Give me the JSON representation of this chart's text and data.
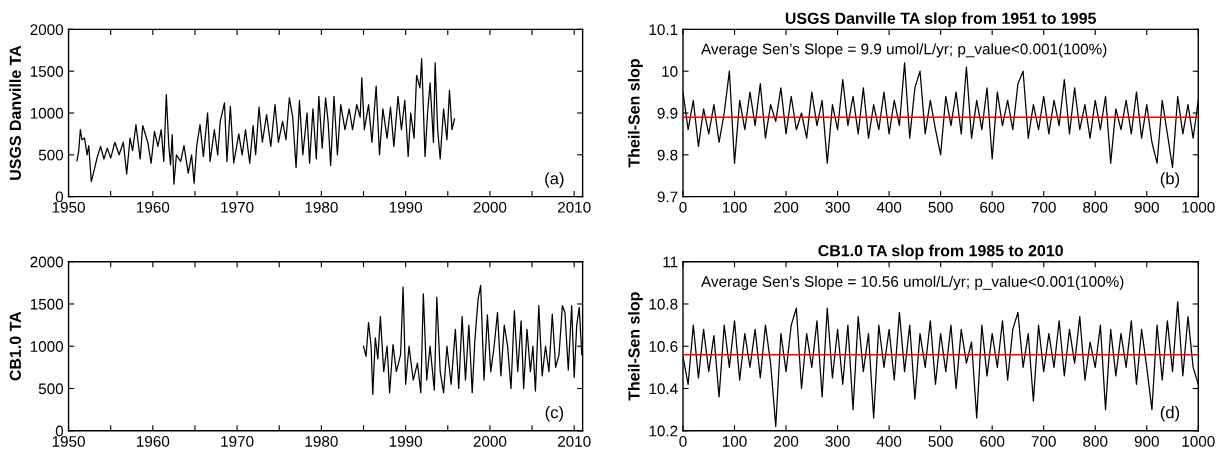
{
  "chart_data": [
    {
      "type": "line",
      "ylabel": "USGS Danville TA",
      "annotations": [
        "(a)"
      ],
      "xlim": [
        1950,
        2011
      ],
      "xticks": [
        1950,
        {
          "value": 1955,
          "label": null
        },
        1960,
        {
          "value": 1965,
          "label": null
        },
        1970,
        {
          "value": 1975,
          "label": null
        },
        1980,
        {
          "value": 1985,
          "label": null
        },
        1990,
        {
          "value": 1995,
          "label": null
        },
        2000,
        {
          "value": 2005,
          "label": null
        },
        2010
      ],
      "ylim": [
        0,
        2000
      ],
      "yticks": [
        0,
        500,
        1000,
        1500,
        2000
      ],
      "series": [
        {
          "color": "#000000",
          "x": [
            1951.0,
            1951.2,
            1951.4,
            1951.6,
            1951.9,
            1952.2,
            1952.4,
            1952.7,
            1953.0,
            1953.4,
            1953.8,
            1954.2,
            1954.6,
            1955.0,
            1955.5,
            1956.0,
            1956.5,
            1956.9,
            1957.3,
            1957.6,
            1958.0,
            1958.5,
            1958.8,
            1959.4,
            1959.8,
            1960.2,
            1960.6,
            1961.0,
            1961.3,
            1961.6,
            1961.9,
            1962.1,
            1962.3,
            1962.5,
            1962.8,
            1963.3,
            1963.7,
            1964.2,
            1964.6,
            1964.9,
            1965.2,
            1965.6,
            1966.0,
            1966.5,
            1966.8,
            1967.3,
            1967.7,
            1968.0,
            1968.5,
            1968.8,
            1969.2,
            1969.6,
            1970.2,
            1970.6,
            1971.0,
            1971.5,
            1971.9,
            1972.2,
            1972.6,
            1973.0,
            1973.5,
            1974.0,
            1974.5,
            1974.9,
            1975.4,
            1975.8,
            1976.2,
            1976.6,
            1977.0,
            1977.4,
            1977.8,
            1978.3,
            1978.6,
            1979.0,
            1979.4,
            1979.7,
            1980.1,
            1980.5,
            1980.8,
            1981.1,
            1981.5,
            1981.9,
            1982.3,
            1982.8,
            1983.3,
            1983.7,
            1984.2,
            1984.6,
            1984.8,
            1985.1,
            1985.6,
            1986.0,
            1986.5,
            1986.9,
            1987.3,
            1987.8,
            1988.2,
            1988.6,
            1989.1,
            1989.5,
            1989.9,
            1990.3,
            1990.6,
            1991.0,
            1991.3,
            1991.7,
            1991.9,
            1992.3,
            1992.6,
            1992.9,
            1993.3,
            1993.5,
            1993.8,
            1994.1,
            1994.5,
            1994.9,
            1995.2,
            1995.5,
            1995.8
          ],
          "values": [
            430,
            540,
            800,
            680,
            700,
            500,
            610,
            180,
            300,
            470,
            600,
            450,
            580,
            460,
            650,
            500,
            650,
            270,
            700,
            550,
            860,
            450,
            850,
            650,
            400,
            780,
            600,
            800,
            420,
            1220,
            600,
            380,
            740,
            150,
            500,
            420,
            610,
            280,
            500,
            160,
            600,
            860,
            480,
            1000,
            420,
            800,
            500,
            900,
            1120,
            420,
            1080,
            400,
            750,
            500,
            800,
            400,
            850,
            500,
            1070,
            650,
            980,
            600,
            1100,
            650,
            900,
            680,
            1180,
            950,
            350,
            1150,
            500,
            1000,
            400,
            1050,
            450,
            1200,
            580,
            1180,
            900,
            370,
            1200,
            500,
            1100,
            800,
            1050,
            800,
            1100,
            950,
            1420,
            800,
            1100,
            650,
            1320,
            500,
            1050,
            700,
            1070,
            600,
            1200,
            800,
            1150,
            480,
            1000,
            700,
            1450,
            1300,
            1650,
            480,
            1000,
            1360,
            650,
            1600,
            800,
            450,
            1050,
            680,
            1270,
            800,
            930
          ]
        }
      ]
    },
    {
      "type": "line",
      "title": "USGS Danville TA slop from 1951 to 1995",
      "ylabel": "Theil-Sen slop",
      "annotations": [
        "Average Sen’s Slope = 9.9 umol/L/yr; p_value<0.001(100%)",
        "(b)"
      ],
      "xlim": [
        0,
        1000
      ],
      "xticks": [
        0,
        100,
        200,
        300,
        400,
        500,
        600,
        700,
        800,
        900,
        1000
      ],
      "ylim": [
        9.7,
        10.1
      ],
      "yticks": [
        9.7,
        9.8,
        9.9,
        10,
        10.1
      ],
      "ref_lines": [
        {
          "axis": "y",
          "value": 9.89,
          "color": "#ff0000"
        }
      ],
      "series": [
        {
          "color": "#000000",
          "x": [
            0,
            10,
            20,
            30,
            40,
            50,
            60,
            70,
            80,
            90,
            100,
            110,
            120,
            130,
            140,
            150,
            160,
            170,
            180,
            190,
            200,
            210,
            220,
            230,
            240,
            250,
            260,
            270,
            280,
            290,
            300,
            310,
            320,
            330,
            340,
            350,
            360,
            370,
            380,
            390,
            400,
            410,
            420,
            430,
            440,
            450,
            460,
            470,
            480,
            490,
            500,
            510,
            520,
            530,
            540,
            550,
            560,
            570,
            580,
            590,
            600,
            610,
            620,
            630,
            640,
            650,
            660,
            670,
            680,
            690,
            700,
            710,
            720,
            730,
            740,
            750,
            760,
            770,
            780,
            790,
            800,
            810,
            820,
            830,
            840,
            850,
            860,
            870,
            880,
            890,
            900,
            910,
            920,
            930,
            940,
            950,
            960,
            970,
            980,
            990,
            1000
          ],
          "values": [
            9.95,
            9.86,
            9.93,
            9.82,
            9.91,
            9.85,
            9.92,
            9.83,
            9.9,
            10.0,
            9.78,
            9.93,
            9.86,
            9.95,
            9.87,
            9.97,
            9.84,
            9.92,
            9.88,
            9.96,
            9.85,
            9.94,
            9.86,
            9.9,
            9.84,
            9.95,
            9.87,
            9.93,
            9.78,
            9.92,
            9.86,
            9.98,
            9.87,
            9.94,
            9.85,
            9.96,
            9.84,
            9.92,
            9.86,
            9.95,
            9.85,
            9.93,
            9.87,
            10.02,
            9.84,
            9.96,
            10.0,
            9.85,
            9.93,
            9.86,
            9.8,
            9.94,
            9.87,
            9.95,
            9.85,
            10.01,
            9.84,
            9.93,
            9.86,
            9.96,
            9.79,
            9.95,
            9.87,
            9.93,
            9.86,
            9.97,
            10.0,
            9.84,
            9.92,
            9.86,
            9.94,
            9.85,
            9.93,
            9.87,
            9.98,
            9.85,
            9.96,
            9.86,
            9.92,
            9.84,
            9.93,
            9.86,
            9.94,
            9.78,
            9.91,
            9.86,
            9.93,
            9.85,
            9.95,
            9.84,
            9.92,
            9.83,
            9.78,
            9.93,
            9.85,
            9.77,
            9.94,
            9.85,
            9.92,
            9.84,
            9.93
          ]
        }
      ]
    },
    {
      "type": "line",
      "ylabel": "CB1.0 TA",
      "annotations": [
        "(c)"
      ],
      "xlim": [
        1950,
        2011
      ],
      "xticks": [
        1950,
        {
          "value": 1955,
          "label": null
        },
        1960,
        {
          "value": 1965,
          "label": null
        },
        1970,
        {
          "value": 1975,
          "label": null
        },
        1980,
        {
          "value": 1985,
          "label": null
        },
        1990,
        {
          "value": 1995,
          "label": null
        },
        2000,
        {
          "value": 2005,
          "label": null
        },
        2010
      ],
      "ylim": [
        0,
        2000
      ],
      "yticks": [
        0,
        500,
        1000,
        1500,
        2000
      ],
      "series": [
        {
          "color": "#000000",
          "x": [
            1985.0,
            1985.3,
            1985.6,
            1985.9,
            1986.1,
            1986.4,
            1986.7,
            1987.0,
            1987.4,
            1987.8,
            1988.1,
            1988.5,
            1988.9,
            1989.4,
            1989.7,
            1990.0,
            1990.4,
            1990.9,
            1991.4,
            1991.8,
            1992.1,
            1992.5,
            1992.9,
            1993.4,
            1993.7,
            1994.1,
            1994.5,
            1994.9,
            1995.4,
            1995.9,
            1996.3,
            1996.7,
            1997.1,
            1997.5,
            1997.9,
            1998.2,
            1998.6,
            1998.9,
            1999.3,
            1999.7,
            2000.1,
            2000.5,
            2000.9,
            2001.3,
            2001.7,
            2002.1,
            2002.5,
            2002.9,
            2003.3,
            2003.7,
            2004.0,
            2004.4,
            2004.8,
            2005.1,
            2005.4,
            2005.8,
            2006.2,
            2006.6,
            2007.0,
            2007.4,
            2007.8,
            2008.2,
            2008.6,
            2008.9,
            2009.3,
            2009.7,
            2010.0,
            2010.3,
            2010.6,
            2010.9
          ],
          "values": [
            1000,
            880,
            1280,
            1000,
            430,
            1100,
            850,
            1350,
            700,
            1000,
            450,
            1020,
            700,
            900,
            1700,
            550,
            1000,
            600,
            800,
            450,
            1620,
            600,
            1000,
            480,
            1580,
            700,
            450,
            1000,
            550,
            1200,
            500,
            1350,
            600,
            1250,
            450,
            1050,
            1560,
            1720,
            600,
            1370,
            700,
            1000,
            1400,
            650,
            1250,
            1000,
            500,
            1420,
            700,
            1300,
            500,
            1200,
            700,
            1000,
            470,
            1480,
            650,
            1000,
            700,
            1380,
            750,
            900,
            1480,
            1400,
            720,
            1480,
            630,
            1250,
            1460,
            900
          ]
        }
      ]
    },
    {
      "type": "line",
      "title": "CB1.0 TA slop from 1985 to 2010",
      "ylabel": "Theil-Sen slop",
      "annotations": [
        "Average Sen’s Slope = 10.56 umol/L/yr; p_value<0.001(100%)",
        "(d)"
      ],
      "xlim": [
        0,
        1000
      ],
      "xticks": [
        0,
        100,
        200,
        300,
        400,
        500,
        600,
        700,
        800,
        900,
        1000
      ],
      "ylim": [
        10.2,
        11
      ],
      "yticks": [
        10.2,
        10.4,
        10.6,
        10.8,
        11
      ],
      "ref_lines": [
        {
          "axis": "y",
          "value": 10.56,
          "color": "#ff0000"
        }
      ],
      "series": [
        {
          "color": "#000000",
          "x": [
            0,
            10,
            20,
            30,
            40,
            50,
            60,
            70,
            80,
            90,
            100,
            110,
            120,
            130,
            140,
            150,
            160,
            170,
            180,
            190,
            200,
            210,
            220,
            230,
            240,
            250,
            260,
            270,
            280,
            290,
            300,
            310,
            320,
            330,
            340,
            350,
            360,
            370,
            380,
            390,
            400,
            410,
            420,
            430,
            440,
            450,
            460,
            470,
            480,
            490,
            500,
            510,
            520,
            530,
            540,
            550,
            560,
            570,
            580,
            590,
            600,
            610,
            620,
            630,
            640,
            650,
            660,
            670,
            680,
            690,
            700,
            710,
            720,
            730,
            740,
            750,
            760,
            770,
            780,
            790,
            800,
            810,
            820,
            830,
            840,
            850,
            860,
            870,
            880,
            890,
            900,
            910,
            920,
            930,
            940,
            950,
            960,
            970,
            980,
            990,
            1000
          ],
          "values": [
            10.55,
            10.42,
            10.7,
            10.45,
            10.68,
            10.48,
            10.65,
            10.36,
            10.7,
            10.5,
            10.72,
            10.44,
            10.66,
            10.5,
            10.68,
            10.45,
            10.7,
            10.52,
            10.22,
            10.66,
            10.48,
            10.7,
            10.78,
            10.4,
            10.66,
            10.5,
            10.72,
            10.36,
            10.78,
            10.45,
            10.68,
            10.42,
            10.7,
            10.3,
            10.74,
            10.48,
            10.66,
            10.26,
            10.7,
            10.5,
            10.68,
            10.44,
            10.76,
            10.48,
            10.7,
            10.35,
            10.66,
            10.5,
            10.72,
            10.42,
            10.66,
            10.48,
            10.7,
            10.4,
            10.68,
            10.52,
            10.62,
            10.26,
            10.7,
            10.46,
            10.66,
            10.5,
            10.72,
            10.44,
            10.68,
            10.76,
            10.5,
            10.66,
            10.34,
            10.7,
            10.48,
            10.66,
            10.5,
            10.72,
            10.46,
            10.68,
            10.52,
            10.74,
            10.44,
            10.62,
            10.5,
            10.7,
            10.3,
            10.68,
            10.46,
            10.66,
            10.5,
            10.72,
            10.42,
            10.68,
            10.5,
            10.3,
            10.7,
            10.44,
            10.72,
            10.48,
            10.81,
            10.46,
            10.74,
            10.5,
            10.42
          ]
        }
      ]
    }
  ]
}
